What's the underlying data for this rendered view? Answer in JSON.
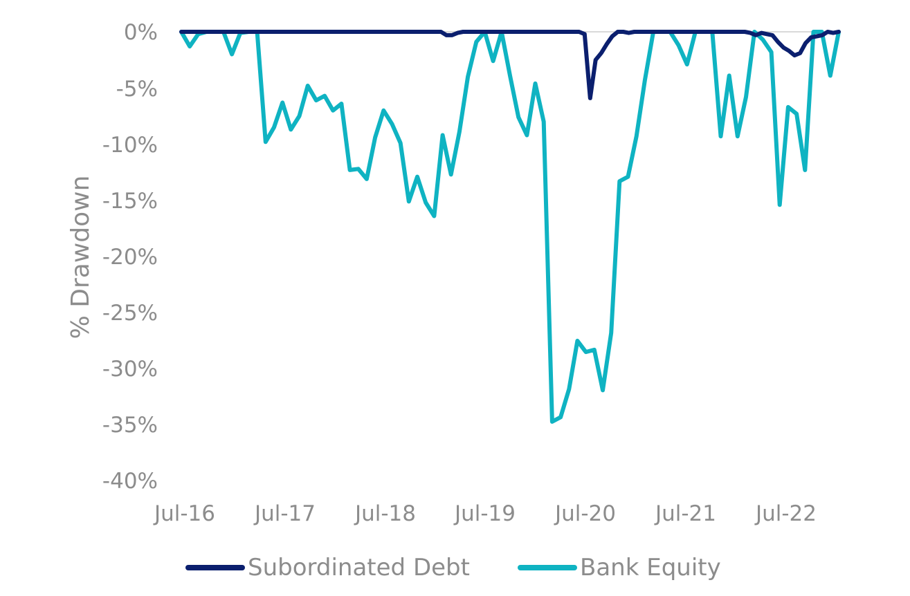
{
  "chart_data": {
    "type": "line",
    "ylabel": "% Drawdown",
    "xlabel": "",
    "ylim": [
      -40,
      0
    ],
    "yticks": [
      "0%",
      "-5%",
      "-10%",
      "-15%",
      "-20%",
      "-25%",
      "-30%",
      "-35%",
      "-40%"
    ],
    "xticks": [
      "Jul-16",
      "Jul-17",
      "Jul-18",
      "Jul-19",
      "Jul-20",
      "Jul-21",
      "Jul-22"
    ],
    "legend_position": "bottom",
    "series": [
      {
        "name": "Subordinated Debt",
        "color": "#0b1f6e",
        "values": [
          0,
          0,
          0,
          0,
          0,
          0,
          0,
          0,
          0,
          0,
          0,
          0,
          0,
          0,
          0,
          0,
          0,
          0,
          0,
          0,
          0,
          0,
          0,
          0,
          0,
          0,
          0,
          0,
          0,
          0,
          0,
          0,
          0,
          0,
          0,
          0,
          0,
          0,
          0,
          0,
          0,
          0,
          0,
          0,
          0,
          0,
          0,
          0,
          -0.3,
          -0.3,
          -0.1,
          0,
          0,
          0,
          0,
          0,
          0,
          0,
          0,
          0,
          0,
          0,
          0,
          0,
          0,
          0,
          0,
          0,
          0,
          0,
          0,
          0,
          0,
          -0.2,
          -5.9,
          -2.5,
          -1.9,
          -1.1,
          -0.4,
          0,
          0,
          -0.1,
          0,
          0,
          0,
          0,
          0,
          0,
          0,
          0,
          0,
          0,
          0,
          0,
          0,
          0,
          0,
          0,
          0,
          0,
          0,
          0,
          0,
          -0.1,
          -0.3,
          -0.1,
          -0.2,
          -0.3,
          -0.9,
          -1.4,
          -1.7,
          -2.1,
          -1.9,
          -1.0,
          -0.5,
          -0.4,
          -0.3,
          0,
          -0.1,
          0
        ]
      },
      {
        "name": "Bank Equity",
        "color": "#0fb3c2",
        "values": [
          0,
          -1.3,
          -0.2,
          0,
          0,
          0,
          -2.0,
          -0.1,
          0,
          0,
          -9.8,
          -8.5,
          -6.3,
          -8.7,
          -7.5,
          -4.8,
          -6.1,
          -5.7,
          -7.0,
          -6.4,
          -12.3,
          -12.2,
          -13.1,
          -9.4,
          -7.0,
          -8.2,
          -9.9,
          -15.1,
          -12.9,
          -15.2,
          -16.4,
          -9.2,
          -12.7,
          -8.9,
          -4.0,
          -0.9,
          0,
          -2.6,
          0,
          -3.9,
          -7.6,
          -9.2,
          -4.6,
          -8.0,
          -34.7,
          -34.3,
          -31.8,
          -27.5,
          -28.5,
          -28.3,
          -31.9,
          -26.8,
          -13.3,
          -12.9,
          -9.3,
          -4.3,
          0,
          0,
          0,
          -1.2,
          -2.9,
          0,
          0,
          0,
          -9.3,
          -3.9,
          -9.3,
          -5.8,
          0,
          -0.7,
          -1.8,
          -15.4,
          -6.7,
          -7.3,
          -12.3,
          0,
          0,
          -3.9,
          0
        ]
      }
    ]
  }
}
